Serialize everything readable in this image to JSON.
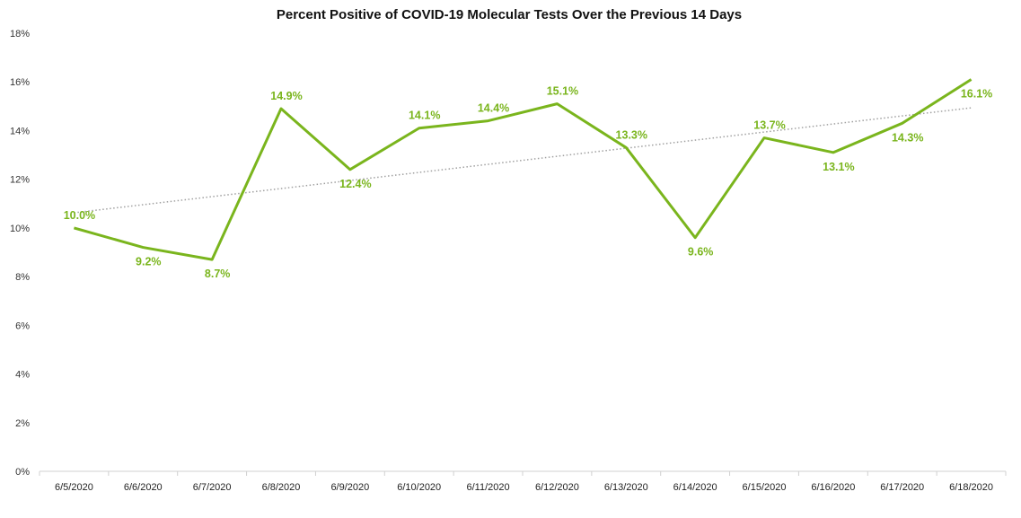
{
  "chart_data": {
    "type": "line",
    "title": "Percent Positive of COVID-19 Molecular Tests Over the Previous 14 Days",
    "xlabel": "",
    "ylabel": "",
    "ylim": [
      0,
      18
    ],
    "yticks": [
      "0%",
      "2%",
      "4%",
      "6%",
      "8%",
      "10%",
      "12%",
      "14%",
      "16%",
      "18%"
    ],
    "ytick_values": [
      0,
      2,
      4,
      6,
      8,
      10,
      12,
      14,
      16,
      18
    ],
    "categories": [
      "6/5/2020",
      "6/6/2020",
      "6/7/2020",
      "6/8/2020",
      "6/9/2020",
      "6/10/2020",
      "6/11/2020",
      "6/12/2020",
      "6/13/2020",
      "6/14/2020",
      "6/15/2020",
      "6/16/2020",
      "6/17/2020",
      "6/18/2020"
    ],
    "series": [
      {
        "values": [
          10.0,
          9.2,
          8.7,
          14.9,
          12.4,
          14.1,
          14.4,
          15.1,
          13.3,
          9.6,
          13.7,
          13.1,
          14.3,
          16.1
        ],
        "labels": [
          "10.0%",
          "9.2%",
          "8.7%",
          "14.9%",
          "12.4%",
          "14.1%",
          "14.4%",
          "15.1%",
          "13.3%",
          "9.6%",
          "13.7%",
          "13.1%",
          "14.3%",
          "16.1%"
        ],
        "label_positions": [
          "above",
          "below",
          "below",
          "above",
          "below",
          "above",
          "above",
          "above",
          "above",
          "below",
          "above",
          "below",
          "below",
          "below"
        ],
        "color": "#7ab51d"
      }
    ],
    "trendline": {
      "type": "linear",
      "style": "dotted",
      "color": "#a0a0a0"
    },
    "grid": false,
    "legend": "none"
  }
}
